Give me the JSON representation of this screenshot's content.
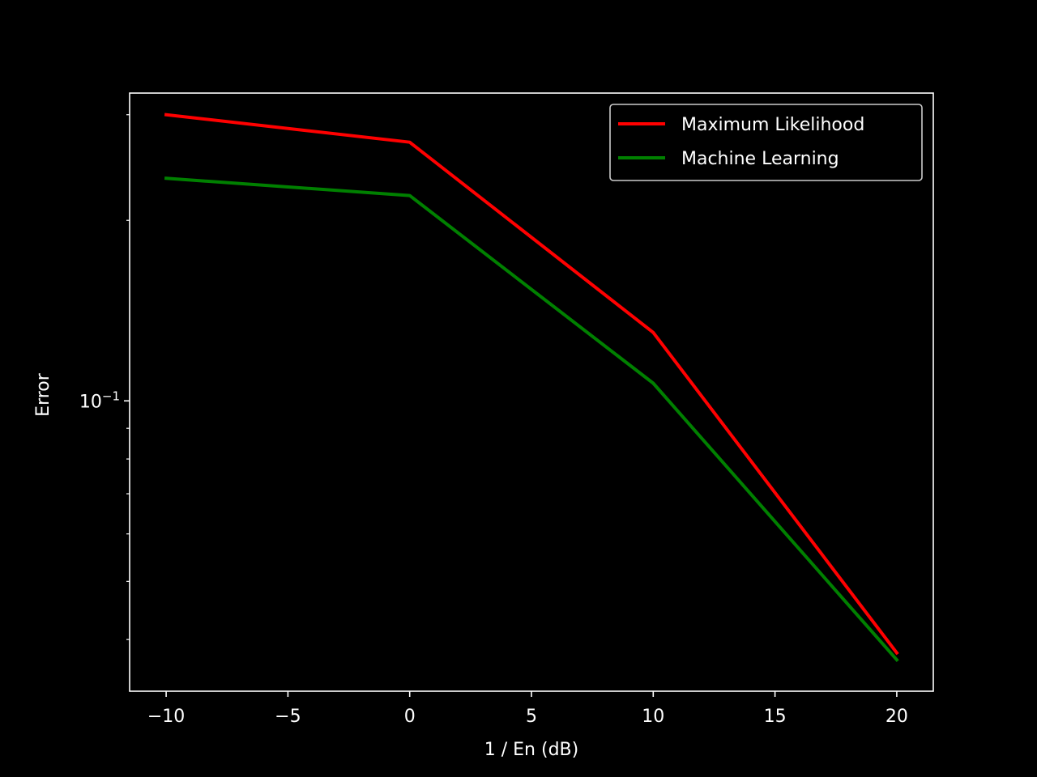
{
  "chart_data": {
    "type": "line",
    "title": "",
    "xlabel": "1 / En (dB)",
    "ylabel": "Error",
    "yscale": "log",
    "x": [
      -10,
      0,
      10,
      20
    ],
    "xlim": [
      -11.5,
      21.5
    ],
    "ylim": [
      0.0328,
      0.326
    ],
    "x_ticks": [
      -10,
      -5,
      0,
      5,
      10,
      15,
      20
    ],
    "x_tick_labels": [
      "−10",
      "−5",
      "0",
      "5",
      "10",
      "15",
      "20"
    ],
    "y_major_ticks": [
      0.1
    ],
    "y_major_tick_labels": [
      {
        "base": "10",
        "exp": "−1"
      }
    ],
    "y_minor_ticks": [
      0.04,
      0.05,
      0.06,
      0.07,
      0.08,
      0.09,
      0.2,
      0.3
    ],
    "grid": false,
    "legend_position": "upper-right",
    "background": "#000000",
    "foreground": "#ffffff",
    "series": [
      {
        "name": "Maximum Likelihood",
        "color": "#ff0000",
        "values": [
          0.3,
          0.27,
          0.13,
          0.038
        ]
      },
      {
        "name": "Machine Learning",
        "color": "#008000",
        "values": [
          0.235,
          0.22,
          0.107,
          0.037
        ]
      }
    ]
  }
}
